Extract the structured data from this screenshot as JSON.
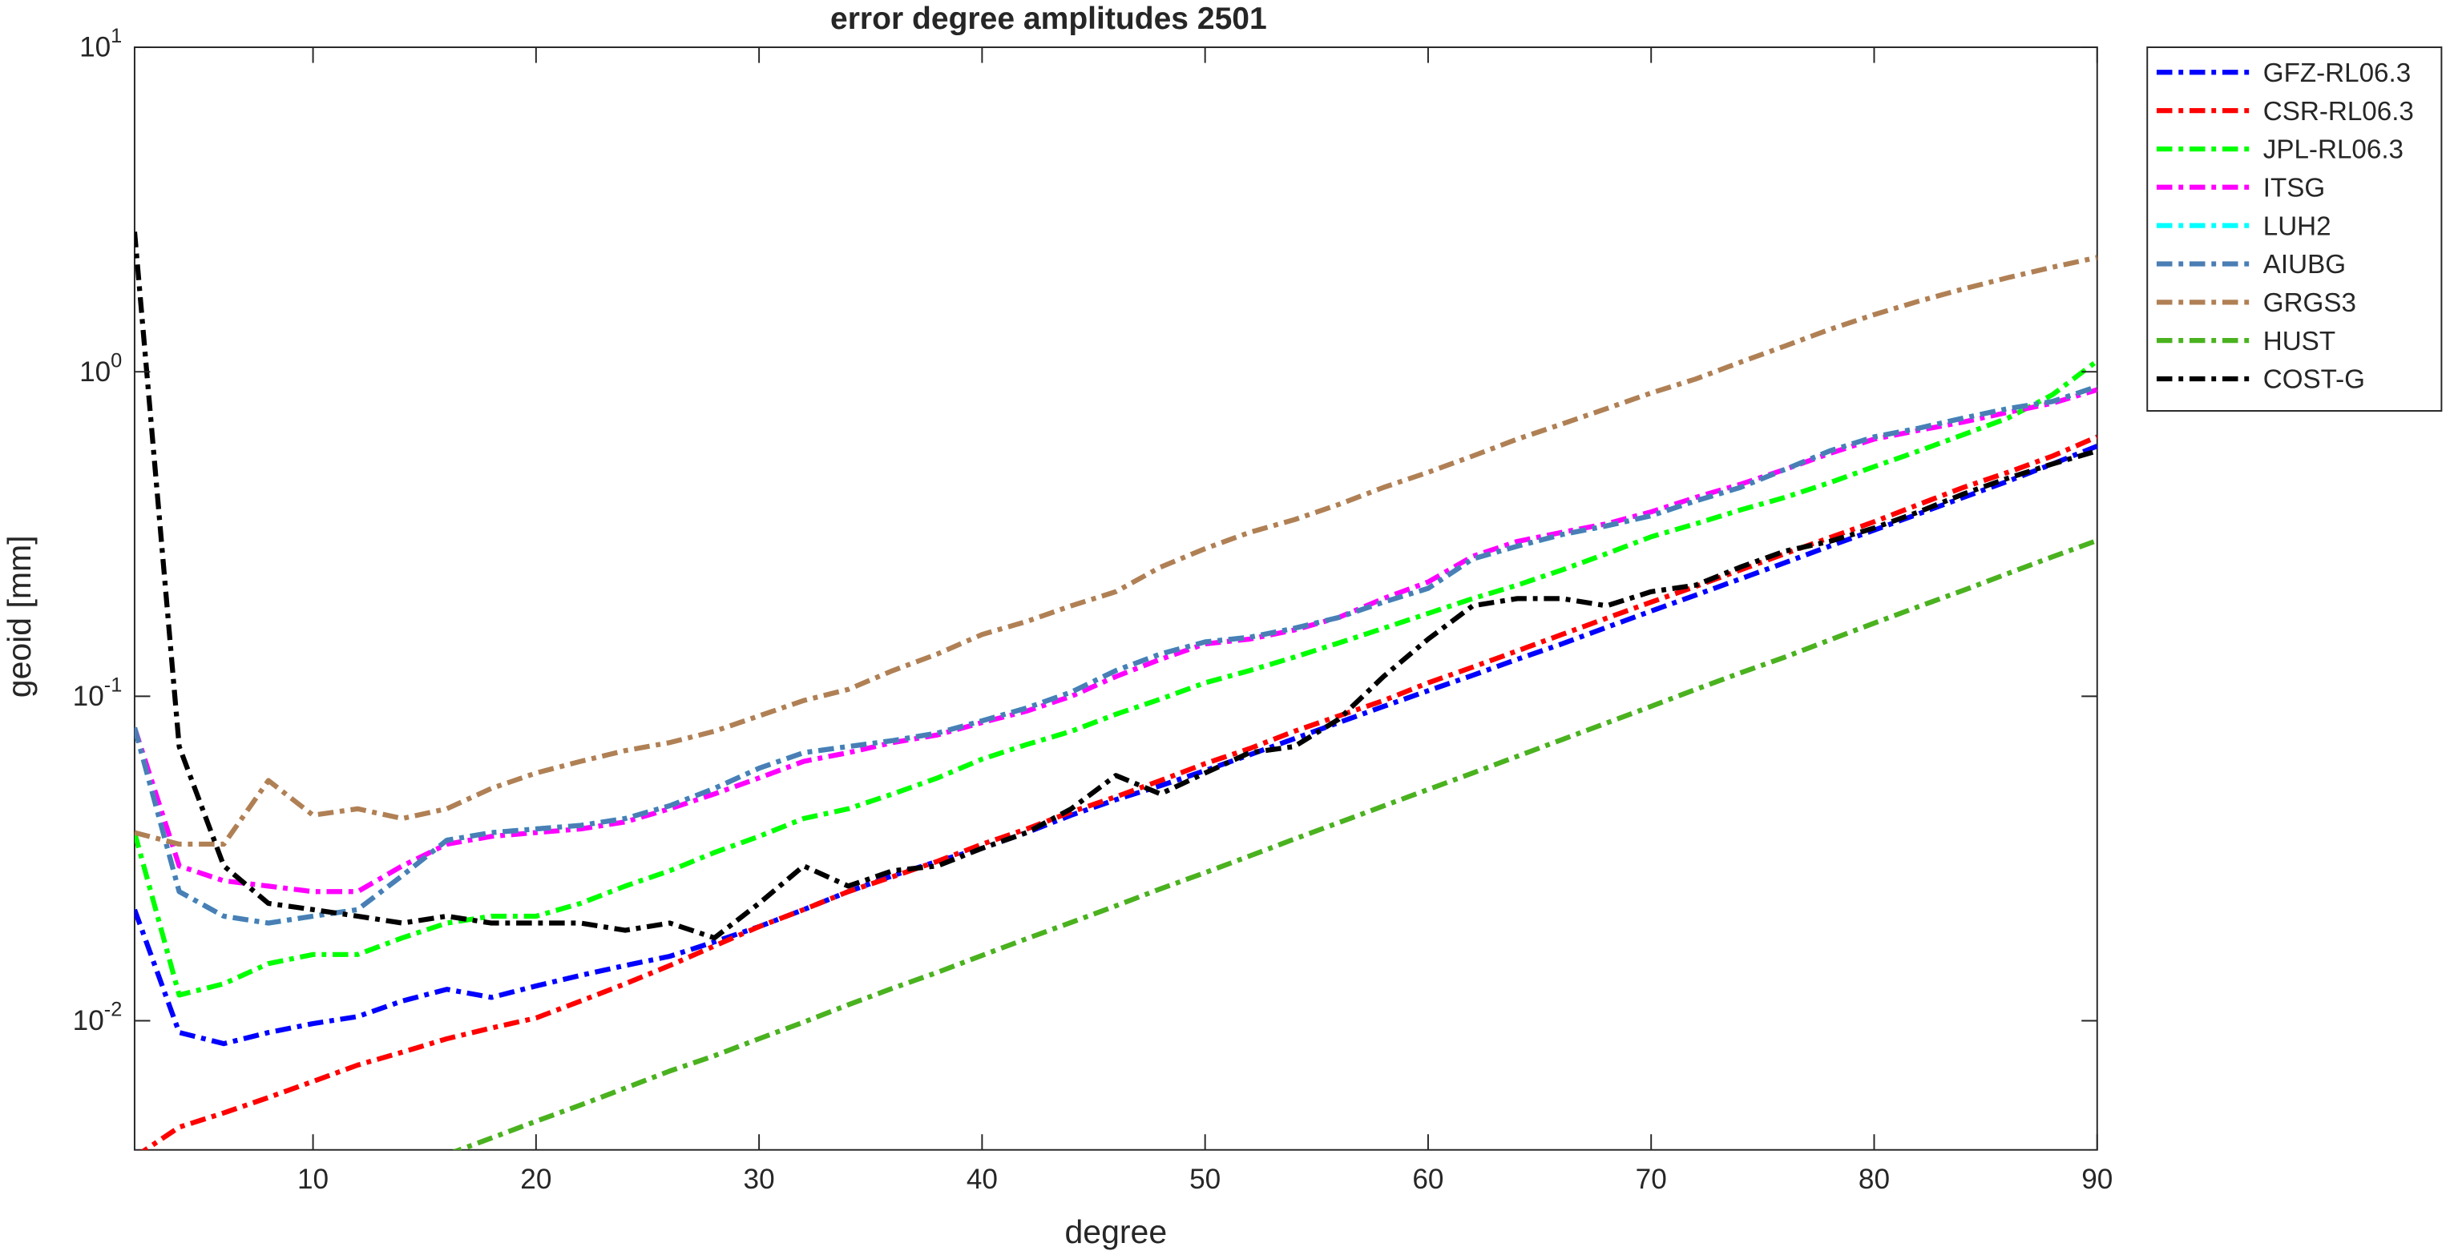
{
  "chart_data": {
    "type": "line",
    "title": "error degree amplitudes 2501",
    "x_label": "degree",
    "y_label": "geoid [mm]",
    "log_y": true,
    "legend": "outside-right",
    "xlim": [
      2,
      90
    ],
    "xticks": [
      10,
      20,
      30,
      40,
      50,
      60,
      70,
      80,
      90
    ],
    "ylim": [
      0.004,
      10
    ],
    "yticks": [
      {
        "value": 0.01,
        "label": "10^-2"
      },
      {
        "value": 0.1,
        "label": "10^-1"
      },
      {
        "value": 1,
        "label": "10^0"
      },
      {
        "value": 10,
        "label": "10^1"
      }
    ],
    "x": [
      2,
      4,
      6,
      8,
      10,
      12,
      14,
      16,
      18,
      20,
      22,
      24,
      26,
      28,
      30,
      32,
      34,
      36,
      38,
      40,
      42,
      44,
      46,
      48,
      50,
      52,
      54,
      56,
      58,
      60,
      62,
      64,
      66,
      68,
      70,
      72,
      74,
      76,
      78,
      80,
      82,
      84,
      86,
      88,
      90
    ],
    "series": [
      {
        "name": "GFZ-RL06.3",
        "color": "#0000ff",
        "values": [
          0.022,
          0.0092,
          0.0085,
          0.0092,
          0.0098,
          0.0103,
          0.0115,
          0.0125,
          0.0118,
          0.0128,
          0.0138,
          0.0148,
          0.0158,
          0.0175,
          0.0195,
          0.022,
          0.025,
          0.028,
          0.031,
          0.034,
          0.038,
          0.043,
          0.048,
          0.053,
          0.059,
          0.066,
          0.074,
          0.083,
          0.093,
          0.104,
          0.116,
          0.13,
          0.145,
          0.163,
          0.183,
          0.205,
          0.23,
          0.258,
          0.29,
          0.325,
          0.365,
          0.41,
          0.46,
          0.52,
          0.59
        ]
      },
      {
        "name": "CSR-RL06.3",
        "color": "#ff0000",
        "values": [
          0.0038,
          0.0047,
          0.0052,
          0.0058,
          0.0065,
          0.0073,
          0.008,
          0.0088,
          0.0095,
          0.0102,
          0.0115,
          0.013,
          0.0148,
          0.017,
          0.0195,
          0.022,
          0.025,
          0.0278,
          0.031,
          0.035,
          0.039,
          0.044,
          0.049,
          0.055,
          0.062,
          0.069,
          0.078,
          0.087,
          0.097,
          0.11,
          0.123,
          0.138,
          0.155,
          0.174,
          0.195,
          0.218,
          0.245,
          0.275,
          0.308,
          0.345,
          0.39,
          0.44,
          0.49,
          0.55,
          0.63
        ]
      },
      {
        "name": "JPL-RL06.3",
        "color": "#00ff00",
        "values": [
          0.038,
          0.012,
          0.013,
          0.015,
          0.016,
          0.016,
          0.018,
          0.02,
          0.021,
          0.021,
          0.023,
          0.026,
          0.029,
          0.033,
          0.037,
          0.042,
          0.045,
          0.05,
          0.056,
          0.064,
          0.071,
          0.078,
          0.088,
          0.098,
          0.11,
          0.12,
          0.132,
          0.146,
          0.162,
          0.18,
          0.2,
          0.22,
          0.245,
          0.275,
          0.31,
          0.34,
          0.375,
          0.41,
          0.455,
          0.51,
          0.57,
          0.64,
          0.72,
          0.85,
          1.08
        ]
      },
      {
        "name": "ITSG",
        "color": "#ff00ff",
        "values": [
          0.08,
          0.03,
          0.027,
          0.026,
          0.025,
          0.025,
          0.03,
          0.035,
          0.037,
          0.038,
          0.039,
          0.041,
          0.045,
          0.05,
          0.056,
          0.063,
          0.067,
          0.072,
          0.076,
          0.083,
          0.09,
          0.1,
          0.115,
          0.13,
          0.145,
          0.15,
          0.16,
          0.175,
          0.2,
          0.225,
          0.27,
          0.3,
          0.32,
          0.34,
          0.37,
          0.41,
          0.45,
          0.5,
          0.56,
          0.62,
          0.66,
          0.7,
          0.75,
          0.8,
          0.88
        ]
      },
      {
        "name": "LUH2",
        "color": "#00ffff",
        "values": [
          0.08,
          0.025,
          0.021,
          0.02,
          0.021,
          0.022,
          0.028,
          0.036,
          0.038,
          0.039,
          0.04,
          0.042,
          0.046,
          0.052,
          0.06,
          0.067,
          0.07,
          0.073,
          0.077,
          0.084,
          0.092,
          0.103,
          0.12,
          0.135,
          0.147,
          0.152,
          0.162,
          0.175,
          0.195,
          0.215,
          0.265,
          0.29,
          0.315,
          0.335,
          0.36,
          0.4,
          0.44,
          0.5,
          0.57,
          0.63,
          0.67,
          0.72,
          0.77,
          0.81,
          0.9
        ]
      },
      {
        "name": "AIUBG",
        "color": "#4a7eb5",
        "values": [
          0.08,
          0.025,
          0.021,
          0.02,
          0.021,
          0.022,
          0.028,
          0.036,
          0.038,
          0.039,
          0.04,
          0.042,
          0.046,
          0.052,
          0.06,
          0.067,
          0.07,
          0.073,
          0.077,
          0.084,
          0.092,
          0.103,
          0.12,
          0.135,
          0.147,
          0.152,
          0.162,
          0.175,
          0.195,
          0.215,
          0.265,
          0.29,
          0.315,
          0.335,
          0.36,
          0.4,
          0.44,
          0.5,
          0.57,
          0.63,
          0.67,
          0.72,
          0.77,
          0.81,
          0.9
        ]
      },
      {
        "name": "GRGS3",
        "color": "#b08055",
        "values": [
          0.038,
          0.035,
          0.035,
          0.055,
          0.043,
          0.045,
          0.042,
          0.045,
          0.052,
          0.058,
          0.063,
          0.068,
          0.072,
          0.078,
          0.087,
          0.097,
          0.105,
          0.12,
          0.135,
          0.155,
          0.17,
          0.19,
          0.21,
          0.25,
          0.285,
          0.32,
          0.35,
          0.39,
          0.44,
          0.49,
          0.55,
          0.62,
          0.69,
          0.77,
          0.86,
          0.95,
          1.07,
          1.2,
          1.35,
          1.5,
          1.65,
          1.8,
          1.95,
          2.1,
          2.25
        ]
      },
      {
        "name": "HUST",
        "color": "#4ab21f",
        "values": [
          null,
          null,
          null,
          null,
          null,
          null,
          null,
          0.00387,
          0.00435,
          0.0049,
          0.0055,
          0.0062,
          0.007,
          0.0078,
          0.0088,
          0.0099,
          0.0112,
          0.0126,
          0.0141,
          0.0159,
          0.0179,
          0.0201,
          0.0226,
          0.0255,
          0.0286,
          0.0322,
          0.0363,
          0.0408,
          0.0459,
          0.0516,
          0.058,
          0.0653,
          0.0735,
          0.0827,
          0.0931,
          0.105,
          0.118,
          0.132,
          0.149,
          0.168,
          0.189,
          0.212,
          0.239,
          0.269,
          0.302
        ]
      },
      {
        "name": "COST-G",
        "color": "#000000",
        "values": [
          2.7,
          0.07,
          0.03,
          0.023,
          0.022,
          0.021,
          0.02,
          0.021,
          0.02,
          0.02,
          0.02,
          0.019,
          0.02,
          0.018,
          0.023,
          0.03,
          0.026,
          0.029,
          0.03,
          0.034,
          0.038,
          0.045,
          0.057,
          0.05,
          0.058,
          0.067,
          0.07,
          0.085,
          0.115,
          0.15,
          0.19,
          0.2,
          0.2,
          0.19,
          0.21,
          0.22,
          0.25,
          0.28,
          0.3,
          0.33,
          0.37,
          0.42,
          0.47,
          0.52,
          0.57
        ]
      }
    ]
  }
}
